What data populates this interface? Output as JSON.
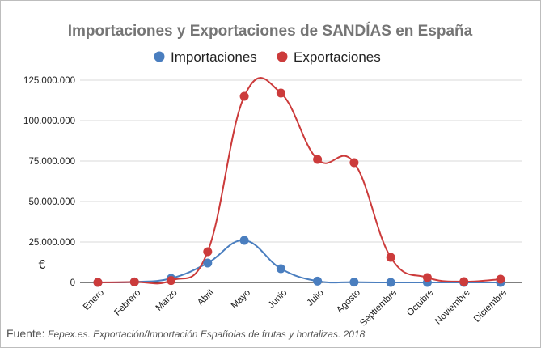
{
  "source": {
    "label": "Fuente:",
    "text": "Fepex.es. Exportación/Importación Españolas de frutas y hortalizas. 2018"
  },
  "chart_data": {
    "type": "line",
    "title": "Importaciones y Exportaciones de SANDÍAS en España",
    "ylabel": "€",
    "xlabel": "",
    "categories": [
      "Enero",
      "Febrero",
      "Marzo",
      "Abril",
      "Mayo",
      "Junio",
      "Julio",
      "Agosto",
      "Septiembre",
      "Octubre",
      "Noviembre",
      "Diciembre"
    ],
    "y_ticks": [
      "0",
      "25.000.000",
      "50.000.000",
      "75.000.000",
      "100.000.000",
      "125.000.000"
    ],
    "ylim": [
      0,
      125000000
    ],
    "grid": true,
    "legend_position": "top",
    "smooth": true,
    "series": [
      {
        "name": "Importaciones",
        "color": "#4a7ebf",
        "values": [
          0,
          300000,
          2500000,
          12000000,
          26000000,
          8500000,
          800000,
          200000,
          0,
          0,
          0,
          0
        ]
      },
      {
        "name": "Exportaciones",
        "color": "#cc3b3b",
        "values": [
          0,
          300000,
          1200000,
          19000000,
          115000000,
          117000000,
          76000000,
          74000000,
          15500000,
          3000000,
          500000,
          2000000
        ]
      }
    ]
  }
}
